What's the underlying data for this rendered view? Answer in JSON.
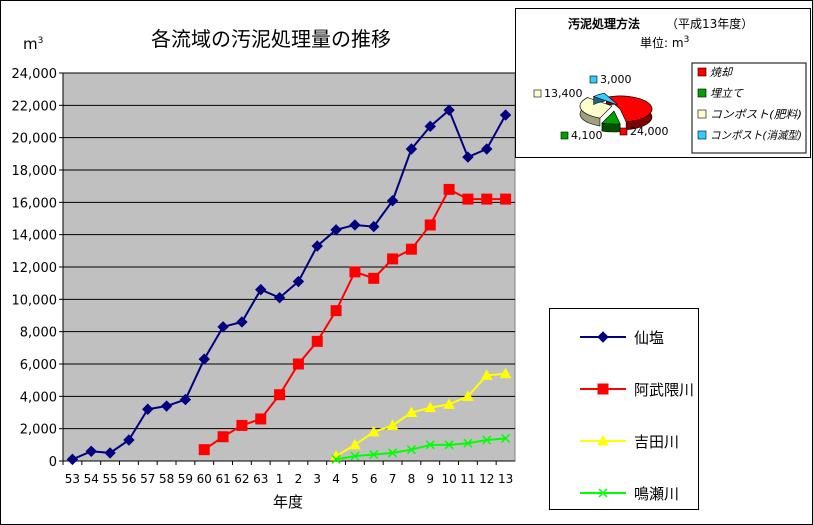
{
  "chart_data": [
    {
      "type": "line",
      "title": "各流域の汚泥処理量の推移",
      "ylabel": "m3",
      "xlabel": "年度",
      "ylim": [
        0,
        24000
      ],
      "yticks": [
        "0",
        "2,000",
        "4,000",
        "6,000",
        "8,000",
        "10,000",
        "12,000",
        "14,000",
        "16,000",
        "18,000",
        "20,000",
        "22,000",
        "24,000"
      ],
      "categories": [
        "53",
        "54",
        "55",
        "56",
        "57",
        "58",
        "59",
        "60",
        "61",
        "62",
        "63",
        "1",
        "2",
        "3",
        "4",
        "5",
        "6",
        "7",
        "8",
        "9",
        "10",
        "11",
        "12",
        "13"
      ],
      "grid": true,
      "legend_position": "bottom-right",
      "series": [
        {
          "name": "仙塩",
          "color": "#000080",
          "marker": "diamond",
          "values": [
            100,
            600,
            500,
            1300,
            3200,
            3400,
            3800,
            6300,
            8300,
            8600,
            10600,
            10100,
            11100,
            13300,
            14300,
            14600,
            14500,
            16100,
            19300,
            20700,
            21700,
            18800,
            19300,
            21400
          ]
        },
        {
          "name": "阿武隈川",
          "color": "#ff0000",
          "marker": "square",
          "values": [
            null,
            null,
            null,
            null,
            null,
            null,
            null,
            700,
            1500,
            2200,
            2600,
            4100,
            6000,
            7400,
            9300,
            11700,
            11300,
            12500,
            13100,
            14600,
            16800,
            16200,
            16200,
            16200
          ]
        },
        {
          "name": "吉田川",
          "color": "#ffff00",
          "marker": "triangle",
          "values": [
            null,
            null,
            null,
            null,
            null,
            null,
            null,
            null,
            null,
            null,
            null,
            null,
            null,
            null,
            300,
            1000,
            1800,
            2200,
            3000,
            3300,
            3500,
            4000,
            5300,
            5400
          ]
        },
        {
          "name": "鳴瀬川",
          "color": "#00ff00",
          "marker": "x",
          "values": [
            null,
            null,
            null,
            null,
            null,
            null,
            null,
            null,
            null,
            null,
            null,
            null,
            null,
            null,
            100,
            300,
            400,
            500,
            700,
            1000,
            1000,
            1100,
            1300,
            1400
          ]
        }
      ]
    },
    {
      "type": "pie",
      "title": "汚泥処理方法",
      "subtitle": "（平成13年度）",
      "unit": "単位: m3",
      "labels": [
        "焼却",
        "埋立て",
        "コンポスト(肥料)",
        "コンポスト(消滅型)"
      ],
      "values": [
        24000,
        4100,
        13400,
        3000
      ],
      "value_labels": [
        "24,000",
        "4,100",
        "13,400",
        "3,000"
      ],
      "colors": [
        "#ff0000",
        "#00a000",
        "#ffffcc",
        "#33ccff"
      ],
      "legend_position": "right"
    }
  ]
}
